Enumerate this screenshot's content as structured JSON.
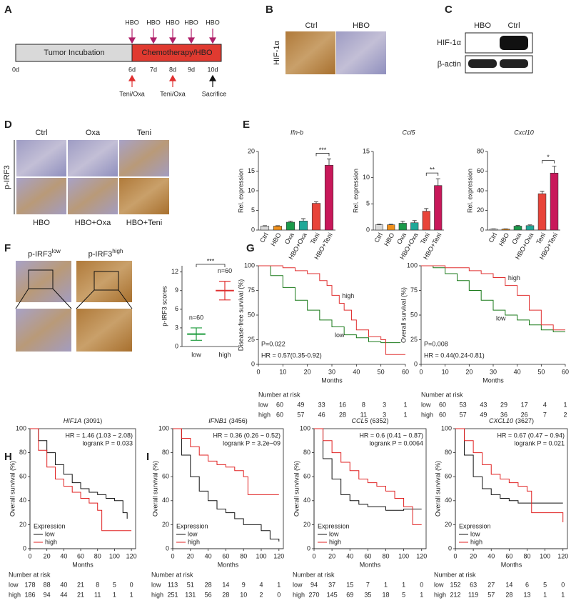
{
  "panel_labels": [
    "A",
    "B",
    "C",
    "D",
    "E",
    "F",
    "G",
    "H",
    "I"
  ],
  "timeline": {
    "phases": [
      "Tumor Incubation",
      "Chemotherapy/HBO"
    ],
    "days": [
      "0d",
      "6d",
      "7d",
      "8d",
      "9d",
      "10d"
    ],
    "top_marker": "HBO",
    "bottom": [
      "Teni/Oxa",
      "Teni/Oxa",
      "Sacrifice"
    ]
  },
  "ihc_b": {
    "ylabel": "HIF-1α",
    "columns": [
      "Ctrl",
      "HBO"
    ]
  },
  "blot_c": {
    "columns": [
      "HBO",
      "Ctrl"
    ],
    "rows": [
      "HIF-1α",
      "β-actin"
    ]
  },
  "ihc_d": {
    "ylabel": "p-IRF3",
    "top": [
      "Ctrl",
      "Oxa",
      "Teni"
    ],
    "bottom": [
      "HBO",
      "HBO+Oxa",
      "HBO+Teni"
    ]
  },
  "ihc_f": {
    "columns": [
      {
        "base": "p-IRF3",
        "sup": "low"
      },
      {
        "base": "p-IRF3",
        "sup": "high"
      }
    ]
  },
  "chart_data": [
    {
      "type": "bar",
      "title": "Ifn-b",
      "ylabel": "Rel. expression",
      "categories": [
        "Ctrl",
        "HBO",
        "Oxa",
        "HBO+Oxa",
        "Teni",
        "HBO+Teni"
      ],
      "values": [
        1,
        1,
        2,
        2.3,
        6.8,
        16.5
      ],
      "errors": [
        0.1,
        0.1,
        0.3,
        0.6,
        0.4,
        1.6
      ],
      "colors": [
        "#d9d9d9",
        "#f0901c",
        "#1a9a4a",
        "#20a898",
        "#e8443a",
        "#c8185a"
      ],
      "ylim": [
        0,
        20
      ],
      "yticks": [
        0,
        5,
        10,
        15,
        20
      ],
      "significance": {
        "label": "***",
        "from": 4,
        "to": 5
      }
    },
    {
      "type": "bar",
      "title": "Ccl5",
      "ylabel": "Rel. expression",
      "categories": [
        "Ctrl",
        "HBO",
        "Oxa",
        "HBO+Oxa",
        "Teni",
        "HBO+Teni"
      ],
      "values": [
        1,
        1,
        1.3,
        1.4,
        3.6,
        8.5
      ],
      "errors": [
        0.1,
        0.1,
        0.4,
        0.4,
        0.5,
        1.3
      ],
      "colors": [
        "#d9d9d9",
        "#f0901c",
        "#1a9a4a",
        "#20a898",
        "#e8443a",
        "#c8185a"
      ],
      "ylim": [
        0,
        15
      ],
      "yticks": [
        0,
        5,
        10,
        15
      ],
      "significance": {
        "label": "**",
        "from": 4,
        "to": 5
      }
    },
    {
      "type": "bar",
      "title": "Cxcl10",
      "ylabel": "Rel. expression",
      "categories": [
        "Ctrl",
        "HBO",
        "Oxa",
        "HBO+Oxa",
        "Teni",
        "HBO+Teni"
      ],
      "values": [
        1,
        1,
        4,
        4.5,
        37,
        58
      ],
      "errors": [
        0.3,
        0.3,
        0.6,
        0.8,
        2.5,
        7
      ],
      "colors": [
        "#d9d9d9",
        "#f0901c",
        "#1a9a4a",
        "#20a898",
        "#e8443a",
        "#c8185a"
      ],
      "ylim": [
        0,
        80
      ],
      "yticks": [
        0,
        20,
        40,
        60,
        80
      ],
      "significance": {
        "label": "*",
        "from": 4,
        "to": 5
      }
    },
    {
      "type": "dot",
      "ylabel": "p-IRF3 scores",
      "categories": [
        "low",
        "high"
      ],
      "values": [
        2,
        9
      ],
      "errors": [
        1,
        1.5
      ],
      "colors": [
        "#1a9a3a",
        "#e03030"
      ],
      "n_labels": [
        "n=60",
        "n=60"
      ],
      "ylim": [
        0,
        13
      ],
      "yticks": [
        0,
        3,
        6,
        9,
        12
      ],
      "significance": {
        "label": "***",
        "from": 0,
        "to": 1
      }
    },
    {
      "type": "km",
      "legend": "on-curve",
      "xlabel": "Months",
      "ylabel": "Disease-free survival (%)",
      "xlim": [
        0,
        60
      ],
      "xticks": [
        0,
        10,
        20,
        30,
        40,
        50,
        60
      ],
      "ylim": [
        0,
        100
      ],
      "yticks": [
        0,
        25,
        50,
        75,
        100
      ],
      "annotations": [
        "P=0.022",
        "HR = 0.57(0.35-0.92)"
      ],
      "series": [
        {
          "name": "low",
          "color": "#1a7a1a",
          "x": [
            0,
            5,
            10,
            15,
            20,
            25,
            30,
            35,
            40,
            45,
            50,
            55,
            58
          ],
          "values": [
            100,
            90,
            78,
            65,
            55,
            45,
            38,
            30,
            27,
            23,
            22,
            22,
            22
          ]
        },
        {
          "name": "high",
          "color": "#e03030",
          "x": [
            0,
            5,
            10,
            15,
            20,
            25,
            28,
            30,
            33,
            35,
            38,
            40,
            45,
            50,
            52,
            55,
            60
          ],
          "values": [
            100,
            100,
            98,
            95,
            92,
            85,
            80,
            70,
            62,
            55,
            45,
            35,
            28,
            25,
            10,
            10,
            10
          ]
        }
      ],
      "risk_title": "Number at risk",
      "risk_values": [
        [
          60,
          49,
          33,
          16,
          8,
          3,
          1
        ],
        [
          60,
          57,
          46,
          28,
          11,
          3,
          1
        ]
      ]
    },
    {
      "type": "km",
      "legend": "on-curve",
      "xlabel": "Months",
      "ylabel": "Overall survival (%)",
      "xlim": [
        0,
        60
      ],
      "xticks": [
        0,
        10,
        20,
        30,
        40,
        50,
        60
      ],
      "ylim": [
        0,
        100
      ],
      "yticks": [
        0,
        25,
        50,
        75,
        100
      ],
      "annotations": [
        "P=0.008",
        "HR = 0.44(0.24-0.81)"
      ],
      "series": [
        {
          "name": "low",
          "color": "#1a7a1a",
          "x": [
            0,
            5,
            10,
            15,
            20,
            25,
            30,
            35,
            40,
            45,
            50,
            55,
            60
          ],
          "values": [
            100,
            98,
            92,
            85,
            75,
            65,
            55,
            50,
            45,
            40,
            35,
            33,
            33
          ]
        },
        {
          "name": "high",
          "color": "#e03030",
          "x": [
            0,
            10,
            20,
            25,
            30,
            35,
            40,
            45,
            50,
            55,
            60
          ],
          "values": [
            100,
            98,
            95,
            92,
            88,
            80,
            70,
            55,
            40,
            35,
            35
          ]
        }
      ],
      "risk_title": "Number at risk",
      "risk_values": [
        [
          60,
          53,
          43,
          29,
          17,
          4,
          1
        ],
        [
          60,
          57,
          49,
          36,
          26,
          7,
          2
        ]
      ]
    },
    {
      "type": "km",
      "legend": "box",
      "legend_title": "Expression",
      "title": "HIF1A",
      "title_note": "(3091)",
      "xlabel": "Months",
      "ylabel": "Overall survival (%)",
      "xlim": [
        0,
        125
      ],
      "xticks": [
        0,
        20,
        40,
        60,
        80,
        100,
        120
      ],
      "ylim": [
        0,
        100
      ],
      "yticks": [
        0,
        20,
        40,
        60,
        80,
        100
      ],
      "annotations": [
        "HR = 1.46 (1.03 − 2.08)",
        "logrank P = 0.033"
      ],
      "series": [
        {
          "name": "low",
          "color": "#111111",
          "x": [
            0,
            10,
            20,
            30,
            40,
            50,
            60,
            70,
            80,
            90,
            100,
            110,
            115
          ],
          "values": [
            100,
            90,
            80,
            70,
            62,
            55,
            50,
            47,
            45,
            42,
            40,
            30,
            25
          ]
        },
        {
          "name": "high",
          "color": "#e02020",
          "x": [
            0,
            10,
            20,
            30,
            40,
            50,
            60,
            70,
            80,
            85,
            90,
            120
          ],
          "values": [
            100,
            82,
            68,
            58,
            52,
            47,
            42,
            38,
            32,
            15,
            15,
            15
          ]
        }
      ],
      "risk_title": "Number at risk",
      "risk_values": [
        [
          178,
          88,
          40,
          21,
          8,
          5,
          0
        ],
        [
          186,
          94,
          44,
          21,
          11,
          1,
          1
        ]
      ]
    },
    {
      "type": "km",
      "legend": "box",
      "legend_title": "Expression",
      "title": "IFNB1",
      "title_note": "(3456)",
      "xlabel": "Months",
      "ylabel": "Overall survival (%)",
      "xlim": [
        0,
        125
      ],
      "xticks": [
        0,
        20,
        40,
        60,
        80,
        100,
        120
      ],
      "ylim": [
        0,
        100
      ],
      "yticks": [
        0,
        20,
        40,
        60,
        80,
        100
      ],
      "annotations": [
        "HR = 0.36 (0.26 − 0.52)",
        "logrank P = 3.2e−09"
      ],
      "series": [
        {
          "name": "low",
          "color": "#111111",
          "x": [
            0,
            10,
            20,
            30,
            40,
            50,
            60,
            70,
            80,
            100,
            110,
            120
          ],
          "values": [
            100,
            78,
            60,
            48,
            40,
            33,
            30,
            25,
            20,
            15,
            8,
            6
          ]
        },
        {
          "name": "high",
          "color": "#e02020",
          "x": [
            0,
            10,
            20,
            30,
            40,
            50,
            60,
            70,
            80,
            85,
            120
          ],
          "values": [
            100,
            92,
            85,
            78,
            73,
            70,
            68,
            65,
            60,
            45,
            45
          ]
        }
      ],
      "risk_title": "Number at risk",
      "risk_values": [
        [
          113,
          51,
          28,
          14,
          9,
          4,
          1
        ],
        [
          251,
          131,
          56,
          28,
          10,
          2,
          0
        ]
      ]
    },
    {
      "type": "km",
      "legend": "box",
      "legend_title": "Expression",
      "title": "CCL5",
      "title_note": "(6352)",
      "xlabel": "Months",
      "ylabel": "Overall survival (%)",
      "xlim": [
        0,
        125
      ],
      "xticks": [
        0,
        20,
        40,
        60,
        80,
        100,
        120
      ],
      "ylim": [
        0,
        100
      ],
      "yticks": [
        0,
        20,
        40,
        60,
        80,
        100
      ],
      "annotations": [
        "HR = 0.6 (0.41 − 0.87)",
        "logrank P = 0.0064"
      ],
      "series": [
        {
          "name": "low",
          "color": "#111111",
          "x": [
            0,
            10,
            20,
            30,
            40,
            50,
            60,
            70,
            80,
            100,
            120
          ],
          "values": [
            100,
            75,
            58,
            45,
            40,
            37,
            35,
            35,
            32,
            33,
            33
          ]
        },
        {
          "name": "high",
          "color": "#e02020",
          "x": [
            0,
            10,
            20,
            30,
            40,
            50,
            60,
            70,
            80,
            90,
            100,
            110,
            120
          ],
          "values": [
            100,
            90,
            80,
            72,
            65,
            58,
            55,
            52,
            48,
            42,
            35,
            20,
            20
          ]
        }
      ],
      "risk_title": "Number at risk",
      "risk_values": [
        [
          94,
          37,
          15,
          7,
          1,
          1,
          0
        ],
        [
          270,
          145,
          69,
          35,
          18,
          5,
          1
        ]
      ]
    },
    {
      "type": "km",
      "legend": "box",
      "legend_title": "Expression",
      "title": "CXCL10",
      "title_note": "(3627)",
      "xlabel": "Months",
      "ylabel": "Overall survival (%)",
      "xlim": [
        0,
        125
      ],
      "xticks": [
        0,
        20,
        40,
        60,
        80,
        100,
        120
      ],
      "ylim": [
        0,
        100
      ],
      "yticks": [
        0,
        20,
        40,
        60,
        80,
        100
      ],
      "annotations": [
        "HR = 0.67 (0.47 − 0.94)",
        "logrank P = 0.021"
      ],
      "series": [
        {
          "name": "low",
          "color": "#111111",
          "x": [
            0,
            10,
            20,
            30,
            40,
            50,
            60,
            70,
            80,
            90,
            120
          ],
          "values": [
            100,
            78,
            60,
            50,
            45,
            42,
            40,
            38,
            38,
            38,
            38
          ]
        },
        {
          "name": "high",
          "color": "#e02020",
          "x": [
            0,
            10,
            20,
            30,
            40,
            50,
            60,
            70,
            80,
            85,
            120
          ],
          "values": [
            100,
            90,
            80,
            70,
            62,
            58,
            55,
            52,
            48,
            30,
            22
          ]
        }
      ],
      "risk_title": "Number at risk",
      "risk_values": [
        [
          152,
          63,
          27,
          14,
          6,
          5,
          0
        ],
        [
          212,
          119,
          57,
          28,
          13,
          1,
          1
        ]
      ]
    }
  ]
}
